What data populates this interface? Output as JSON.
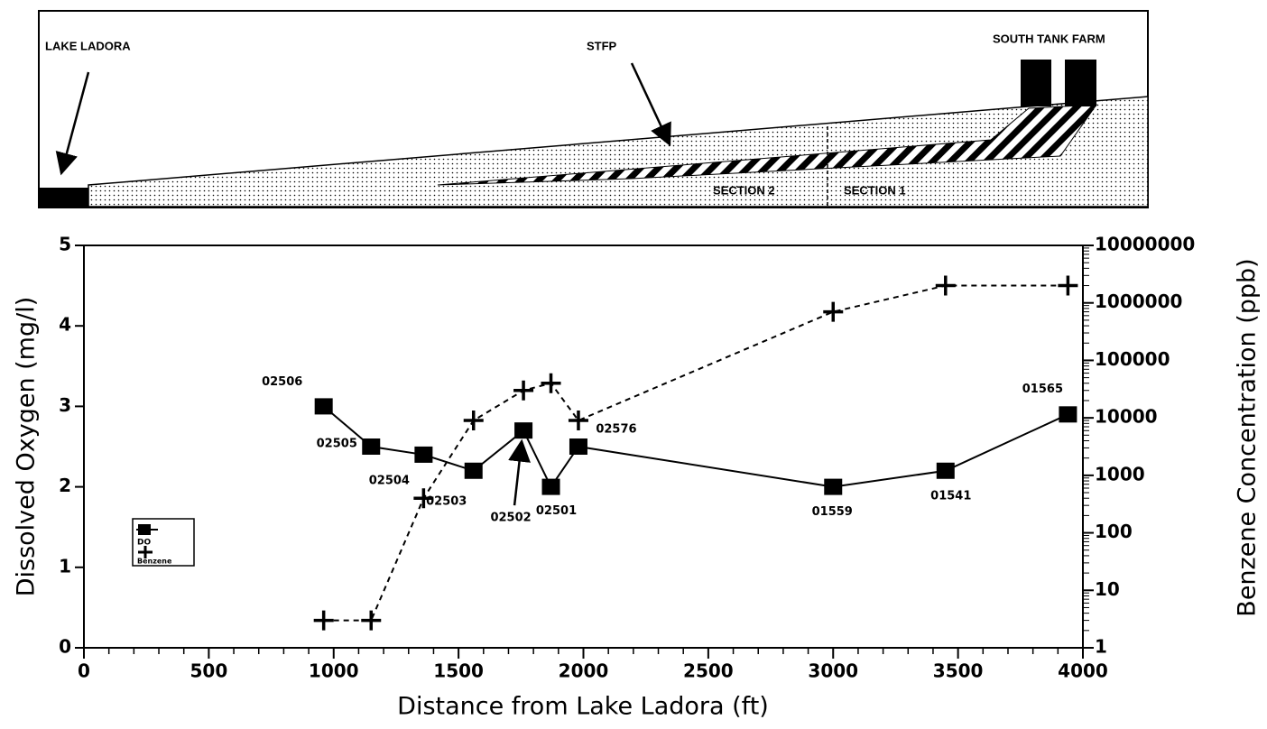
{
  "diagram": {
    "lake": "LAKE LADORA",
    "stfp": "STFP",
    "tank_farm": "SOUTH TANK FARM",
    "section2": "SECTION 2",
    "section1": "SECTION 1"
  },
  "chart_data": {
    "type": "line",
    "x_label": "Distance from Lake Ladora (ft)",
    "y_label": "Dissolved Oxygen (mg/l)",
    "y2_label": "Benzene Concentration (ppb)",
    "x": [
      960,
      1150,
      1360,
      1560,
      1760,
      1870,
      1980,
      3000,
      3450,
      3940
    ],
    "point_labels": [
      "02506",
      "02505",
      "02504",
      "02503",
      "02502",
      "02501",
      "02576",
      "01559",
      "01541",
      "01565"
    ],
    "series": [
      {
        "name": "DO",
        "color": "#000000",
        "axis": "y",
        "values": [
          3.0,
          2.5,
          2.4,
          2.2,
          2.7,
          2.0,
          2.5,
          2.0,
          2.2,
          2.9
        ]
      },
      {
        "name": "Benzene",
        "color": "#000000",
        "axis": "y2",
        "values": [
          3,
          3,
          400,
          9000,
          30000,
          40000,
          9000,
          700000,
          2000000,
          2000000
        ]
      }
    ],
    "xlim": [
      0,
      4000
    ],
    "xticks": [
      0,
      500,
      1000,
      1500,
      2000,
      2500,
      3000,
      3500,
      4000
    ],
    "ylim": [
      0,
      5
    ],
    "yticks": [
      0,
      1,
      2,
      3,
      4,
      5
    ],
    "y2lim": [
      1,
      10000000
    ],
    "y2ticks": [
      1,
      10,
      100,
      1000,
      10000,
      100000,
      1000000,
      10000000
    ],
    "y2scale": "log",
    "legend": "lower left"
  }
}
